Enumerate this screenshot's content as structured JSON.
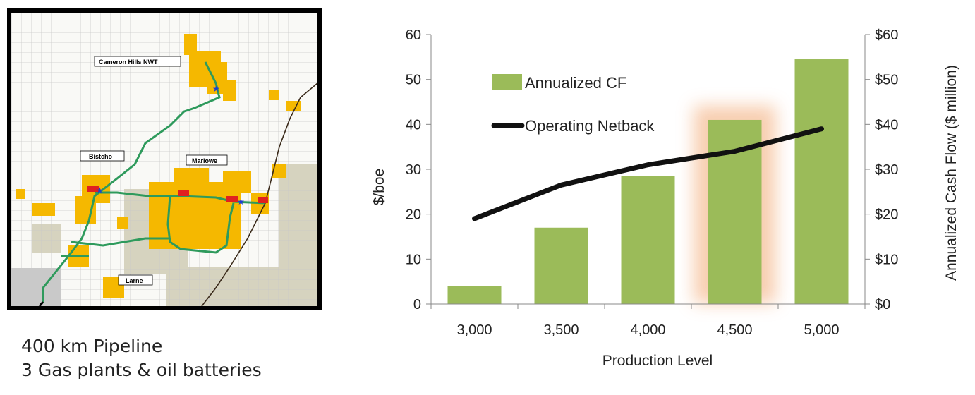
{
  "map": {
    "labels": {
      "cameron_hills": "Cameron Hills NWT",
      "bistcho": "Bistcho",
      "marlowe": "Marlowe",
      "larne": "Larne"
    },
    "colors": {
      "leases": "#f5b800",
      "pipeline": "#2e9a5c",
      "plant": "#e02020",
      "railway": "#3a2a1a",
      "lowland": "#d6d3bf"
    }
  },
  "captions": {
    "line1": "400 km Pipeline",
    "line2": "3 Gas plants & oil batteries"
  },
  "chart_data": {
    "type": "bar",
    "categories": [
      "3,000",
      "3,500",
      "4,000",
      "4,500",
      "5,000"
    ],
    "series": [
      {
        "name": "Annualized CF",
        "type": "bar",
        "axis": "right",
        "values": [
          4,
          17,
          28.5,
          41,
          54.5
        ],
        "color": "#9bbb59"
      },
      {
        "name": "Operating Netback",
        "type": "line",
        "axis": "left",
        "values": [
          19,
          26.5,
          31,
          34,
          39
        ],
        "color": "#111111"
      }
    ],
    "xlabel": "Production Level",
    "ylabel": "$/boe",
    "y2label": "Annualized Cash Flow ($ million)",
    "ylim": [
      0,
      60
    ],
    "y2lim": [
      0,
      60
    ],
    "yticks": [
      "0",
      "10",
      "20",
      "30",
      "40",
      "50",
      "60"
    ],
    "y2ticks": [
      "$0",
      "$10",
      "$20",
      "$30",
      "$40",
      "$50",
      "$60"
    ],
    "highlight_category": "4,500",
    "highlight_color": "#f7c9a8",
    "legend_position": "top-left"
  }
}
